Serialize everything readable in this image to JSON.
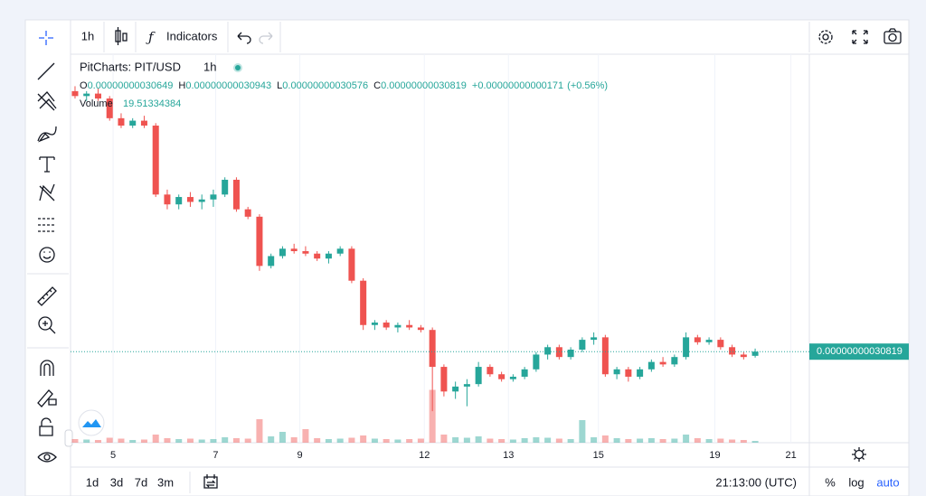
{
  "toolbar": {
    "interval": "1h",
    "indicators": "Indicators"
  },
  "legend": {
    "symbol": "PitCharts: PIT/USD",
    "interval": "1h",
    "ohlc": [
      {
        "key": "O",
        "value": "0.00000000030649"
      },
      {
        "key": "H",
        "value": "0.00000000030943"
      },
      {
        "key": "L",
        "value": "0.00000000030576"
      },
      {
        "key": "C",
        "value": "0.00000000030819"
      }
    ],
    "change": "+0.00000000000171",
    "change_pct": "(+0.56%)",
    "volume_label": "Volume",
    "volume_value": "19.51334384"
  },
  "chart_data": {
    "type": "candlestick",
    "open": [
      4.14e-10,
      4.12e-10,
      4.13e-10,
      4.11e-10,
      4.03e-10,
      4e-10,
      4.02e-10,
      4e-10,
      3.72e-10,
      3.68e-10,
      3.71e-10,
      3.69e-10,
      3.7e-10,
      3.72e-10,
      3.78e-10,
      3.66e-10,
      3.63e-10,
      3.43e-10,
      3.47e-10,
      3.5e-10,
      3.49e-10,
      3.48e-10,
      3.46e-10,
      3.48e-10,
      3.5e-10,
      3.37e-10,
      3.19e-10,
      3.2e-10,
      3.18e-10,
      3.19e-10,
      3.18e-10,
      3.17e-10,
      3.02e-10,
      2.92e-10,
      2.94e-10,
      2.95e-10,
      3.02e-10,
      2.99e-10,
      2.97e-10,
      2.98e-10,
      3.01e-10,
      3.07e-10,
      3.1e-10,
      3.06e-10,
      3.09e-10,
      3.13e-10,
      3.14e-10,
      2.99e-10,
      3.01e-10,
      2.98e-10,
      3.01e-10,
      3.04e-10,
      3.03e-10,
      3.06e-10,
      3.14e-10,
      3.12e-10,
      3.13e-10,
      3.1e-10,
      3.07e-10,
      3.0649e-10
    ],
    "high": [
      4.16e-10,
      4.14e-10,
      4.15e-10,
      4.12e-10,
      4.05e-10,
      4.03e-10,
      4.04e-10,
      4.01e-10,
      3.74e-10,
      3.72e-10,
      3.73e-10,
      3.72e-10,
      3.74e-10,
      3.79e-10,
      3.79e-10,
      3.67e-10,
      3.64e-10,
      3.48e-10,
      3.51e-10,
      3.52e-10,
      3.51e-10,
      3.49e-10,
      3.49e-10,
      3.51e-10,
      3.51e-10,
      3.38e-10,
      3.21e-10,
      3.21e-10,
      3.2e-10,
      3.21e-10,
      3.19e-10,
      3.18e-10,
      3.03e-10,
      2.96e-10,
      2.97e-10,
      3.04e-10,
      3.03e-10,
      3e-10,
      2.99e-10,
      3.02e-10,
      3.08e-10,
      3.11e-10,
      3.11e-10,
      3.1e-10,
      3.14e-10,
      3.16e-10,
      3.15e-10,
      3.02e-10,
      3.02e-10,
      3.02e-10,
      3.05e-10,
      3.06e-10,
      3.07e-10,
      3.16e-10,
      3.15e-10,
      3.14e-10,
      3.14e-10,
      3.11e-10,
      3.08e-10,
      3.0943e-10
    ],
    "low": [
      4.11e-10,
      4.1e-10,
      4.1e-10,
      4.02e-10,
      3.99e-10,
      3.99e-10,
      3.99e-10,
      3.71e-10,
      3.66e-10,
      3.66e-10,
      3.67e-10,
      3.66e-10,
      3.67e-10,
      3.71e-10,
      3.65e-10,
      3.62e-10,
      3.41e-10,
      3.42e-10,
      3.46e-10,
      3.48e-10,
      3.47e-10,
      3.45e-10,
      3.44e-10,
      3.47e-10,
      3.36e-10,
      3.17e-10,
      3.17e-10,
      3.17e-10,
      3.16e-10,
      3.17e-10,
      3.16e-10,
      2.84e-10,
      2.9e-10,
      2.89e-10,
      2.86e-10,
      2.94e-10,
      2.98e-10,
      2.96e-10,
      2.96e-10,
      2.97e-10,
      3e-10,
      3.05e-10,
      3.05e-10,
      3.05e-10,
      3.08e-10,
      3.11e-10,
      2.98e-10,
      2.97e-10,
      2.96e-10,
      2.97e-10,
      3e-10,
      3.02e-10,
      3.02e-10,
      3.05e-10,
      3.11e-10,
      3.11e-10,
      3.09e-10,
      3.06e-10,
      3.05e-10,
      3.0576e-10
    ],
    "close": [
      4.12e-10,
      4.13e-10,
      4.11e-10,
      4.03e-10,
      4e-10,
      4.02e-10,
      4e-10,
      3.72e-10,
      3.68e-10,
      3.71e-10,
      3.69e-10,
      3.7e-10,
      3.72e-10,
      3.78e-10,
      3.66e-10,
      3.63e-10,
      3.43e-10,
      3.47e-10,
      3.5e-10,
      3.49e-10,
      3.48e-10,
      3.46e-10,
      3.48e-10,
      3.5e-10,
      3.37e-10,
      3.19e-10,
      3.2e-10,
      3.18e-10,
      3.19e-10,
      3.18e-10,
      3.17e-10,
      3.02e-10,
      2.92e-10,
      2.94e-10,
      2.95e-10,
      3.02e-10,
      2.99e-10,
      2.97e-10,
      2.98e-10,
      3.01e-10,
      3.07e-10,
      3.1e-10,
      3.06e-10,
      3.09e-10,
      3.13e-10,
      3.14e-10,
      2.99e-10,
      3.01e-10,
      2.98e-10,
      3.01e-10,
      3.04e-10,
      3.03e-10,
      3.06e-10,
      3.14e-10,
      3.12e-10,
      3.13e-10,
      3.1e-10,
      3.07e-10,
      3.06e-10,
      3.0819e-10
    ],
    "volume": [
      40,
      35,
      30,
      55,
      45,
      30,
      35,
      90,
      50,
      40,
      45,
      35,
      40,
      60,
      50,
      45,
      260,
      70,
      120,
      60,
      150,
      50,
      40,
      45,
      55,
      80,
      45,
      40,
      35,
      40,
      45,
      585,
      90,
      60,
      55,
      70,
      45,
      40,
      35,
      50,
      60,
      55,
      45,
      40,
      250,
      60,
      80,
      50,
      40,
      45,
      50,
      40,
      45,
      90,
      50,
      40,
      45,
      35,
      30,
      19.51334384
    ],
    "up_color": "#26a69a",
    "down_color": "#ef5350",
    "xlim": [
      -0.39,
      63.7
    ],
    "xticks": [
      {
        "value": 3.3,
        "label": "5"
      },
      {
        "value": 12.2,
        "label": "7"
      },
      {
        "value": 19.5,
        "label": "9"
      },
      {
        "value": 30.3,
        "label": "12"
      },
      {
        "value": 37.6,
        "label": "13"
      },
      {
        "value": 45.4,
        "label": "15"
      },
      {
        "value": 55.5,
        "label": "19"
      },
      {
        "value": 62.1,
        "label": "21"
      }
    ],
    "ylim": [
      2.712e-10,
      4.29e-10
    ],
    "vlim": [
      0,
      1800
    ],
    "last_price": {
      "value": 3.0819e-10,
      "label": "0.00000000030819"
    }
  },
  "bottom_bar": {
    "ranges": [
      "1d",
      "3d",
      "7d",
      "3m"
    ],
    "time": "21:13:00 (UTC)",
    "percent": "%",
    "log": "log",
    "auto": "auto"
  }
}
